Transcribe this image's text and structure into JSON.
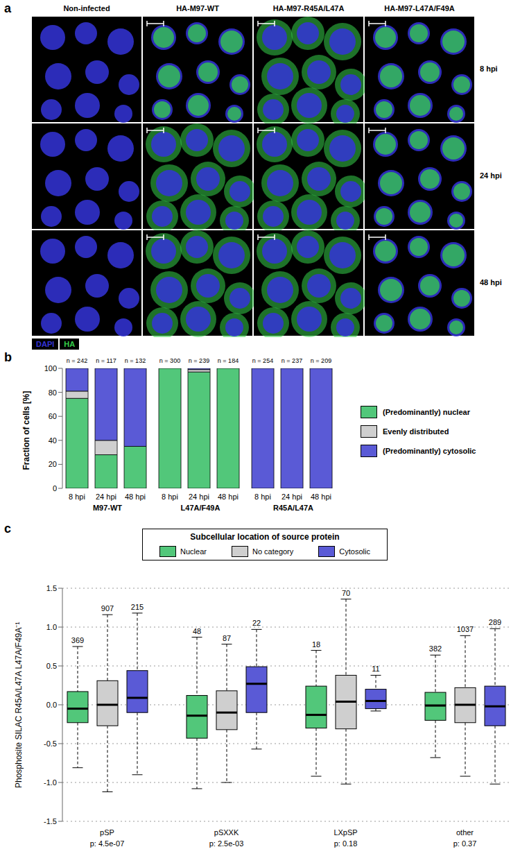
{
  "image_grid": {
    "panel_label": "a",
    "columns": [
      "Non-infected",
      "HA-M97-WT",
      "HA-M97-R45A/L47A",
      "HA-M97-L47A/F49A"
    ],
    "rows": [
      "8 hpi",
      "24 hpi",
      "48 hpi"
    ],
    "channels": [
      {
        "name": "DAPI",
        "color": "#3434d8"
      },
      {
        "name": "HA",
        "color": "#36d04a"
      }
    ]
  },
  "chart_data": [
    {
      "panel_label": "b",
      "type": "bar",
      "stacked": true,
      "ylabel": "Fraction of cells [%]",
      "ylim": [
        0,
        100
      ],
      "yticks": [
        0,
        20,
        40,
        60,
        80,
        100
      ],
      "series": [
        {
          "name": "(Predominantly) nuclear",
          "color": "#52c77a"
        },
        {
          "name": "Evenly distributed",
          "color": "#cfcfcf"
        },
        {
          "name": "(Predominantly) cytosolic",
          "color": "#5a5ad6"
        }
      ],
      "groups": [
        {
          "name": "M97-WT",
          "categories": [
            "8 hpi",
            "24 hpi",
            "48 hpi"
          ],
          "n_labels": [
            "n = 242",
            "n = 117",
            "n = 132"
          ],
          "values": [
            [
              75,
              28,
              35
            ],
            [
              6,
              12,
              0
            ],
            [
              19,
              60,
              65
            ]
          ]
        },
        {
          "name": "L47A/F49A",
          "categories": [
            "8 hpi",
            "24 hpi",
            "48 hpi"
          ],
          "n_labels": [
            "n = 300",
            "n = 239",
            "n = 184"
          ],
          "values": [
            [
              100,
              97,
              100
            ],
            [
              0,
              2,
              0
            ],
            [
              0,
              1,
              0
            ]
          ]
        },
        {
          "name": "R45A/L47A",
          "categories": [
            "8 hpi",
            "24 hpi",
            "48 hpi"
          ],
          "n_labels": [
            "n = 254",
            "n = 237",
            "n = 209"
          ],
          "values": [
            [
              0,
              0,
              0
            ],
            [
              0,
              0,
              0
            ],
            [
              100,
              100,
              100
            ]
          ]
        }
      ]
    },
    {
      "panel_label": "c",
      "type": "box",
      "legend_title": "Subcellular location of source protein",
      "ylabel": "Phosphosite SILAC R45A/L47A L47A/F49A⁻¹",
      "ylim": [
        -1.5,
        1.5
      ],
      "yticks": [
        -1.5,
        {
          "value": -1,
          "label": "-1.0"
        },
        -0.5,
        {
          "value": 0,
          "label": "0.0"
        },
        0.5,
        {
          "value": 1,
          "label": "1.0"
        },
        1.5
      ],
      "grid": true,
      "series": [
        {
          "name": "Nuclear",
          "color": "#52c77a"
        },
        {
          "name": "No category",
          "color": "#cfcfcf"
        },
        {
          "name": "Cytosolic",
          "color": "#5a5ad6"
        }
      ],
      "groups": [
        {
          "name": "pSP",
          "p_label": "p: 4.5e-07",
          "boxes": [
            {
              "whisker_low": -0.81,
              "q1": -0.23,
              "median": -0.05,
              "q3": 0.17,
              "whisker_high": 0.75,
              "n": 369
            },
            {
              "whisker_low": -1.12,
              "q1": -0.27,
              "median": 0.0,
              "q3": 0.31,
              "whisker_high": 1.16,
              "n": 907
            },
            {
              "whisker_low": -0.9,
              "q1": -0.1,
              "median": 0.09,
              "q3": 0.44,
              "whisker_high": 1.18,
              "n": 215
            }
          ]
        },
        {
          "name": "pSXXK",
          "p_label": "p: 2.5e-03",
          "boxes": [
            {
              "whisker_low": -1.08,
              "q1": -0.43,
              "median": -0.14,
              "q3": 0.12,
              "whisker_high": 0.87,
              "n": 48
            },
            {
              "whisker_low": -1.0,
              "q1": -0.32,
              "median": -0.1,
              "q3": 0.18,
              "whisker_high": 0.78,
              "n": 87
            },
            {
              "whisker_low": -0.57,
              "q1": -0.1,
              "median": 0.27,
              "q3": 0.49,
              "whisker_high": 0.97,
              "n": 22
            }
          ]
        },
        {
          "name": "LXpSP",
          "p_label": "p: 0.18",
          "boxes": [
            {
              "whisker_low": -0.92,
              "q1": -0.3,
              "median": -0.13,
              "q3": 0.24,
              "whisker_high": 0.7,
              "n": 18
            },
            {
              "whisker_low": -1.02,
              "q1": -0.31,
              "median": 0.04,
              "q3": 0.38,
              "whisker_high": 1.36,
              "n": 70
            },
            {
              "whisker_low": -0.08,
              "q1": -0.05,
              "median": 0.05,
              "q3": 0.2,
              "whisker_high": 0.38,
              "n": 11
            }
          ]
        },
        {
          "name": "other",
          "p_label": "p: 0.37",
          "boxes": [
            {
              "whisker_low": -0.68,
              "q1": -0.2,
              "median": -0.01,
              "q3": 0.16,
              "whisker_high": 0.64,
              "n": 382
            },
            {
              "whisker_low": -0.92,
              "q1": -0.23,
              "median": 0.0,
              "q3": 0.22,
              "whisker_high": 0.89,
              "n": 1037
            },
            {
              "whisker_low": -1.02,
              "q1": -0.27,
              "median": -0.02,
              "q3": 0.24,
              "whisker_high": 0.98,
              "n": 289
            }
          ]
        }
      ]
    }
  ]
}
